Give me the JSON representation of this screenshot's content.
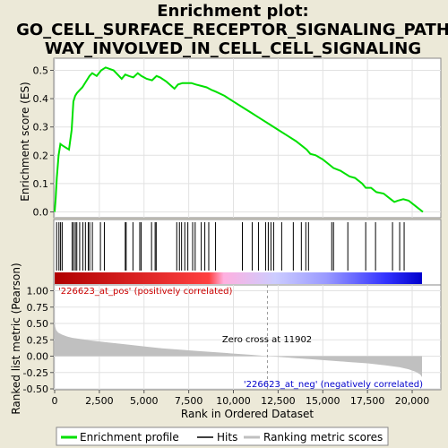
{
  "chart_data": [
    {
      "type": "line",
      "title": "Enrichment plot:\nGO_CELL_SURFACE_RECEPTOR_SIGNALING_PATH\nWAY_INVOLVED_IN_CELL_CELL_SIGNALING",
      "ylabel": "Enrichment score (ES)",
      "ylim": [
        -0.02,
        0.54
      ],
      "xlim": [
        0,
        21500
      ],
      "yticks": [
        "0.0",
        "0.1",
        "0.2",
        "0.3",
        "0.4",
        "0.5"
      ],
      "ytick_values": [
        0.0,
        0.1,
        0.2,
        0.3,
        0.4,
        0.5
      ],
      "grid": true,
      "line_color": "#00e000",
      "series": [
        {
          "name": "Enrichment profile",
          "x": [
            0,
            60,
            120,
            220,
            320,
            420,
            800,
            950,
            1050,
            1150,
            1250,
            1400,
            1550,
            1750,
            1950,
            2100,
            2350,
            2600,
            2850,
            3300,
            3750,
            3950,
            4150,
            4400,
            4650,
            4850,
            5150,
            5450,
            5700,
            5900,
            6250,
            6700,
            6900,
            7150,
            7350,
            7650,
            7900,
            8200,
            8500,
            8800,
            9000,
            9500,
            10000,
            10500,
            11000,
            11500,
            12000,
            12500,
            13000,
            13500,
            13800,
            14100,
            14300,
            14600,
            15000,
            15400,
            15600,
            16000,
            16500,
            16800,
            17200,
            17400,
            17700,
            18000,
            18400,
            18800,
            19000,
            19200,
            19500,
            19800,
            20200,
            20600
          ],
          "y": [
            0.0,
            0.05,
            0.12,
            0.2,
            0.24,
            0.235,
            0.22,
            0.29,
            0.39,
            0.41,
            0.42,
            0.43,
            0.44,
            0.46,
            0.48,
            0.49,
            0.48,
            0.5,
            0.51,
            0.5,
            0.47,
            0.485,
            0.48,
            0.475,
            0.49,
            0.48,
            0.47,
            0.465,
            0.48,
            0.475,
            0.46,
            0.435,
            0.45,
            0.455,
            0.455,
            0.455,
            0.45,
            0.445,
            0.44,
            0.43,
            0.425,
            0.41,
            0.39,
            0.37,
            0.35,
            0.33,
            0.31,
            0.29,
            0.27,
            0.25,
            0.235,
            0.22,
            0.205,
            0.2,
            0.185,
            0.165,
            0.155,
            0.145,
            0.125,
            0.12,
            0.1,
            0.085,
            0.085,
            0.07,
            0.065,
            0.045,
            0.035,
            0.04,
            0.045,
            0.04,
            0.02,
            0.0
          ]
        }
      ]
    },
    {
      "type": "scatter",
      "name": "hits",
      "legend_label": "Hits",
      "hit_positions": [
        110,
        240,
        330,
        420,
        980,
        1060,
        1160,
        1240,
        1400,
        1580,
        1720,
        1880,
        1960,
        2110,
        2560,
        2780,
        3950,
        4000,
        4380,
        4760,
        4840,
        5420,
        5620,
        5680,
        6830,
        6980,
        7100,
        7280,
        7450,
        7720,
        7860,
        8200,
        8400,
        8620,
        9000,
        10500,
        11050,
        11400,
        11800,
        11950,
        12100,
        12250,
        12700,
        13350,
        13800,
        14050,
        14200,
        15500,
        15600,
        16400,
        17400,
        17950,
        18900,
        19300,
        19550
      ],
      "gradient_stops": [
        "#b00000",
        "#ff4040",
        "#ffb0e0",
        "#ccccff",
        "#9999ff",
        "#3333ff",
        "#0000cc"
      ]
    },
    {
      "type": "area",
      "ylabel": "Ranked list metric (Pearson)",
      "xlabel": "Rank in Ordered Dataset",
      "ylim": [
        -0.5,
        1.0
      ],
      "xlim": [
        0,
        21500
      ],
      "yticks": [
        "-0.50",
        "-0.25",
        "0.00",
        "0.25",
        "0.50",
        "0.75",
        "1.00"
      ],
      "ytick_values": [
        -0.5,
        -0.25,
        0.0,
        0.25,
        0.5,
        0.75,
        1.0
      ],
      "xticks": [
        "0",
        "2,500",
        "5,000",
        "7,500",
        "10,000",
        "12,500",
        "15,000",
        "17,500",
        "20,000"
      ],
      "xtick_values": [
        0,
        2500,
        5000,
        7500,
        10000,
        12500,
        15000,
        17500,
        20000
      ],
      "fill_color": "#c0c0c0",
      "series": [
        {
          "name": "Ranking metric scores",
          "x": [
            0,
            30,
            80,
            200,
            400,
            700,
            1000,
            1500,
            2000,
            3000,
            4000,
            5000,
            6000,
            7000,
            8000,
            9000,
            10000,
            11000,
            11902,
            12500,
            13500,
            14500,
            15500,
            16500,
            17500,
            18500,
            19300,
            19800,
            20200,
            20450,
            20550
          ],
          "y": [
            0.55,
            0.45,
            0.4,
            0.36,
            0.33,
            0.3,
            0.28,
            0.26,
            0.24,
            0.21,
            0.18,
            0.15,
            0.12,
            0.1,
            0.08,
            0.06,
            0.04,
            0.02,
            0.0,
            -0.01,
            -0.03,
            -0.05,
            -0.07,
            -0.09,
            -0.11,
            -0.14,
            -0.17,
            -0.2,
            -0.24,
            -0.28,
            -0.32
          ]
        }
      ],
      "zero_cross": 11902,
      "annotations": {
        "pos_label": "'226623_at_pos' (positively correlated)",
        "neg_label": "'226623_at_neg' (negatively correlated)",
        "zero_cross_label": "Zero cross at 11902"
      }
    }
  ],
  "legend": {
    "enrichment": "Enrichment profile",
    "hits": "Hits",
    "ranking": "Ranking metric scores"
  }
}
